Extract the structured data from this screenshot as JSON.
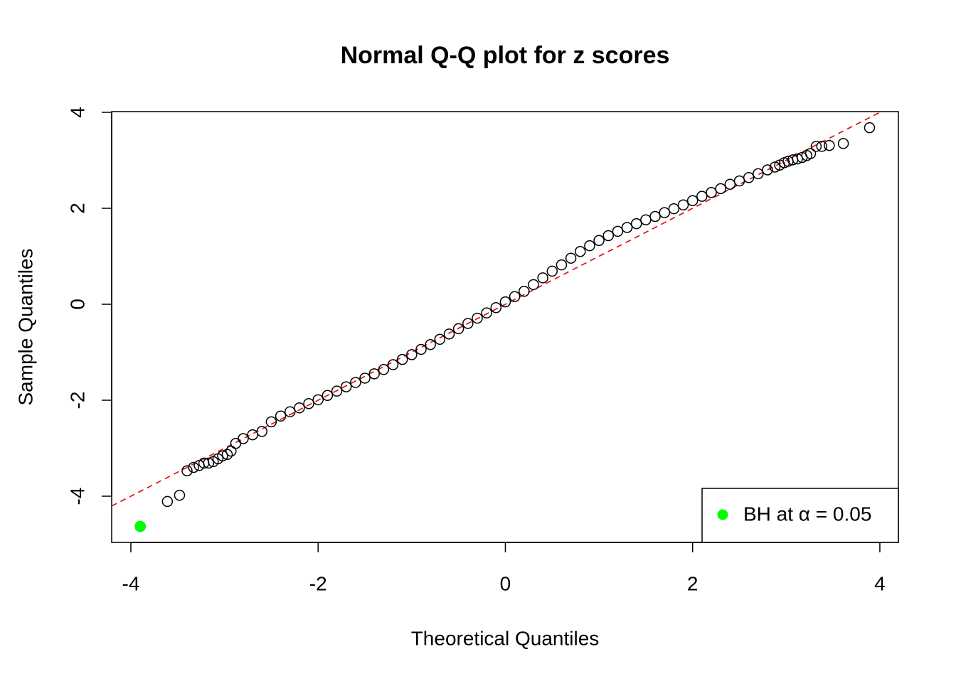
{
  "chart_data": {
    "type": "scatter",
    "title": "Normal Q-Q plot for z scores",
    "x_label": "Theoretical Quantiles",
    "y_label": "Sample Quantiles",
    "xlim": [
      -4.205,
      4.198
    ],
    "ylim": [
      -4.963,
      4.015
    ],
    "xticks": [
      -4,
      -2,
      0,
      2,
      4
    ],
    "yticks": [
      -4,
      -2,
      0,
      2,
      4
    ],
    "reference_line": {
      "intercept": 0,
      "slope": 1,
      "color": "#e31a1c"
    },
    "legend": "bottom-right",
    "series": [
      {
        "color": "#000000",
        "x": [
          -3.9,
          -3.61,
          -3.48,
          -3.4,
          -3.33,
          -3.27,
          -3.22,
          -3.17,
          -3.12,
          -3.07,
          -3.02,
          -2.97,
          -2.93,
          -2.88,
          -2.8,
          -2.7,
          -2.6,
          -2.5,
          -2.4,
          -2.3,
          -2.2,
          -2.1,
          -2.0,
          -1.9,
          -1.8,
          -1.7,
          -1.6,
          -1.5,
          -1.4,
          -1.3,
          -1.2,
          -1.1,
          -1.0,
          -0.9,
          -0.8,
          -0.7,
          -0.6,
          -0.5,
          -0.4,
          -0.3,
          -0.2,
          -0.1,
          0,
          0.1,
          0.2,
          0.3,
          0.4,
          0.5,
          0.6,
          0.7,
          0.8,
          0.9,
          1.0,
          1.1,
          1.2,
          1.3,
          1.4,
          1.5,
          1.6,
          1.7,
          1.8,
          1.9,
          2.0,
          2.1,
          2.2,
          2.3,
          2.4,
          2.5,
          2.6,
          2.7,
          2.8,
          2.88,
          2.93,
          2.98,
          3.02,
          3.07,
          3.12,
          3.17,
          3.22,
          3.26,
          3.32,
          3.38,
          3.46,
          3.61,
          3.89
        ],
        "values": [
          -4.63,
          -4.11,
          -3.98,
          -3.47,
          -3.4,
          -3.36,
          -3.31,
          -3.31,
          -3.28,
          -3.22,
          -3.16,
          -3.13,
          -3.06,
          -2.9,
          -2.8,
          -2.72,
          -2.65,
          -2.45,
          -2.33,
          -2.24,
          -2.16,
          -2.07,
          -1.99,
          -1.9,
          -1.81,
          -1.72,
          -1.63,
          -1.54,
          -1.45,
          -1.36,
          -1.26,
          -1.15,
          -1.05,
          -0.94,
          -0.84,
          -0.73,
          -0.62,
          -0.51,
          -0.4,
          -0.29,
          -0.18,
          -0.07,
          0.05,
          0.16,
          0.27,
          0.41,
          0.55,
          0.69,
          0.82,
          0.96,
          1.1,
          1.22,
          1.33,
          1.43,
          1.52,
          1.6,
          1.68,
          1.76,
          1.83,
          1.91,
          1.99,
          2.07,
          2.16,
          2.25,
          2.33,
          2.41,
          2.5,
          2.57,
          2.64,
          2.72,
          2.8,
          2.86,
          2.9,
          2.95,
          2.98,
          3.01,
          3.03,
          3.06,
          3.1,
          3.14,
          3.29,
          3.29,
          3.31,
          3.35,
          3.68
        ]
      },
      {
        "name": "BH at α = 0.05",
        "color": "#00ff00",
        "x": [
          -3.9
        ],
        "values": [
          -4.63
        ]
      }
    ]
  }
}
